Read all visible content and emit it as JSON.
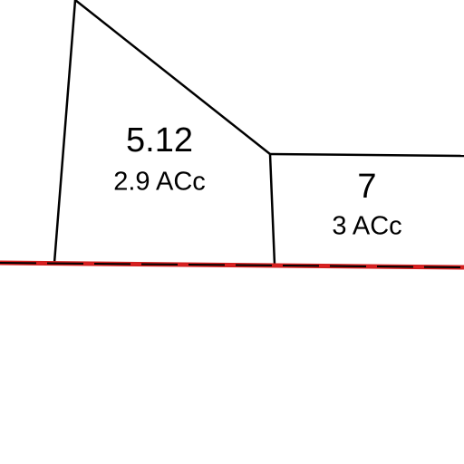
{
  "parcels": [
    {
      "id": "5.12",
      "area": "2.9 ACc"
    },
    {
      "id": "7",
      "area": "3 ACc"
    }
  ]
}
